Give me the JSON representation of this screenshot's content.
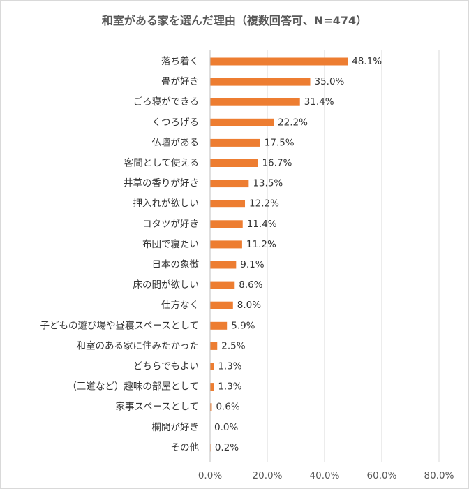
{
  "chart_data": {
    "type": "bar",
    "orientation": "horizontal",
    "title": "和室がある家を選んだ理由（複数回答可、N=474）",
    "categories": [
      "落ち着く",
      "畳が好き",
      "ごろ寝ができる",
      "くつろげる",
      "仏壇がある",
      "客間として使える",
      "井草の香りが好き",
      "押入れが欲しい",
      "コタツが好き",
      "布団で寝たい",
      "日本の象徴",
      "床の間が欲しい",
      "仕方なく",
      "子どもの遊び場や昼寝スペースとして",
      "和室のある家に住みたかった",
      "どちらでもよい",
      "（三道など）趣味の部屋として",
      "家事スペースとして",
      "欄間が好き",
      "その他"
    ],
    "values": [
      48.1,
      35.0,
      31.4,
      22.2,
      17.5,
      16.7,
      13.5,
      12.2,
      11.4,
      11.2,
      9.1,
      8.6,
      8.0,
      5.9,
      2.5,
      1.3,
      1.3,
      0.6,
      0.0,
      0.2
    ],
    "value_labels": [
      "48.1%",
      "35.0%",
      "31.4%",
      "22.2%",
      "17.5%",
      "16.7%",
      "13.5%",
      "12.2%",
      "11.4%",
      "11.2%",
      "9.1%",
      "8.6%",
      "8.0%",
      "5.9%",
      "2.5%",
      "1.3%",
      "1.3%",
      "0.6%",
      "0.0%",
      "0.2%"
    ],
    "xlim": [
      0,
      80
    ],
    "xticks": [
      "0.0%",
      "20.0%",
      "40.0%",
      "60.0%",
      "80.0%"
    ],
    "grid": "vertical",
    "legend": "none",
    "bar_color": "#ED7D31",
    "grid_color": "#D9D9D9"
  }
}
